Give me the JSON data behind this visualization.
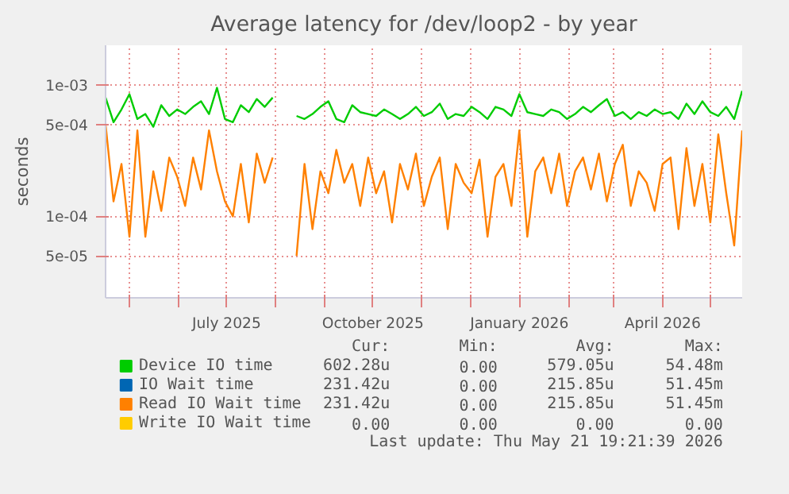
{
  "chart_data": {
    "type": "line",
    "title": "Average latency for /dev/loop2 - by year",
    "ylabel": "seconds",
    "log": "y",
    "grid": true,
    "legend": "bottom",
    "xlim": [
      "2025-04-16",
      "2026-05-21"
    ],
    "ylim": [
      2.4e-05,
      0.002
    ],
    "yticks": [
      {
        "value": 5e-05,
        "label": "5e-05"
      },
      {
        "value": 0.0001,
        "label": "1e-04"
      },
      {
        "value": 0.0005,
        "label": "5e-04"
      },
      {
        "value": 0.001,
        "label": "1e-03"
      }
    ],
    "xticks": [
      {
        "value": "2025-05-01",
        "label": null
      },
      {
        "value": "2025-06-01",
        "label": null
      },
      {
        "value": "2025-07-01",
        "label": "July 2025"
      },
      {
        "value": "2025-08-01",
        "label": null
      },
      {
        "value": "2025-09-01",
        "label": null
      },
      {
        "value": "2025-10-01",
        "label": "October 2025"
      },
      {
        "value": "2025-11-01",
        "label": null
      },
      {
        "value": "2025-12-01",
        "label": null
      },
      {
        "value": "2026-01-01",
        "label": "January 2026"
      },
      {
        "value": "2026-02-01",
        "label": null
      },
      {
        "value": "2026-03-01",
        "label": null
      },
      {
        "value": "2026-04-01",
        "label": "April 2026"
      },
      {
        "value": "2026-05-01",
        "label": null
      }
    ],
    "x": [
      "2025-04-16",
      "2025-04-21",
      "2025-04-26",
      "2025-05-01",
      "2025-05-06",
      "2025-05-11",
      "2025-05-16",
      "2025-05-21",
      "2025-05-26",
      "2025-05-31",
      "2025-06-05",
      "2025-06-10",
      "2025-06-15",
      "2025-06-20",
      "2025-06-25",
      "2025-06-30",
      "2025-07-05",
      "2025-07-10",
      "2025-07-15",
      "2025-07-20",
      "2025-07-25",
      "2025-07-30",
      "2025-08-04",
      "2025-08-09",
      "2025-08-14",
      "2025-08-19",
      "2025-08-24",
      "2025-08-29",
      "2025-09-03",
      "2025-09-08",
      "2025-09-13",
      "2025-09-18",
      "2025-09-23",
      "2025-09-28",
      "2025-10-03",
      "2025-10-08",
      "2025-10-13",
      "2025-10-18",
      "2025-10-23",
      "2025-10-28",
      "2025-11-02",
      "2025-11-07",
      "2025-11-12",
      "2025-11-17",
      "2025-11-22",
      "2025-11-27",
      "2025-12-02",
      "2025-12-07",
      "2025-12-12",
      "2025-12-17",
      "2025-12-22",
      "2025-12-27",
      "2026-01-01",
      "2026-01-06",
      "2026-01-11",
      "2026-01-16",
      "2026-01-21",
      "2026-01-26",
      "2026-01-31",
      "2026-02-05",
      "2026-02-10",
      "2026-02-15",
      "2026-02-20",
      "2026-02-25",
      "2026-03-02",
      "2026-03-07",
      "2026-03-12",
      "2026-03-17",
      "2026-03-22",
      "2026-03-27",
      "2026-04-01",
      "2026-04-06",
      "2026-04-11",
      "2026-04-16",
      "2026-04-21",
      "2026-04-26",
      "2026-05-01",
      "2026-05-06",
      "2026-05-11",
      "2026-05-16",
      "2026-05-21"
    ],
    "series": [
      {
        "name": "Device IO time",
        "color": "#00cc00",
        "values": [
          0.0008,
          0.00052,
          0.00065,
          0.00085,
          0.00055,
          0.0006,
          0.00048,
          0.0007,
          0.00058,
          0.00065,
          0.0006,
          0.00068,
          0.00075,
          0.0006,
          0.00095,
          0.00055,
          0.00052,
          0.0007,
          0.00062,
          0.00078,
          0.00068,
          0.0008,
          null,
          null,
          0.00058,
          0.00055,
          0.0006,
          0.00068,
          0.00075,
          0.00055,
          0.00052,
          0.0007,
          0.00062,
          0.0006,
          0.00058,
          0.00065,
          0.0006,
          0.00055,
          0.0006,
          0.00068,
          0.00058,
          0.00062,
          0.00072,
          0.00055,
          0.0006,
          0.00058,
          0.00068,
          0.00062,
          0.00055,
          0.00068,
          0.00065,
          0.00058,
          0.00085,
          0.00062,
          0.0006,
          0.00058,
          0.00065,
          0.00062,
          0.00055,
          0.0006,
          0.00068,
          0.00062,
          0.0007,
          0.00078,
          0.00058,
          0.00062,
          0.00055,
          0.00062,
          0.00058,
          0.00065,
          0.0006,
          0.00062,
          0.00055,
          0.00072,
          0.0006,
          0.00075,
          0.00062,
          0.00058,
          0.00068,
          0.00055,
          0.0009
        ]
      },
      {
        "name": "IO Wait time",
        "color": "#0066b3",
        "values": [
          null,
          null,
          null,
          null,
          null,
          null,
          null,
          null,
          null,
          null,
          null,
          null,
          null,
          null,
          null,
          null,
          null,
          null,
          null,
          null,
          null,
          null,
          null,
          null,
          null,
          null,
          null,
          null,
          null,
          null,
          null,
          null,
          null,
          null,
          null,
          null,
          null,
          null,
          null,
          null,
          null,
          null,
          null,
          null,
          null,
          null,
          null,
          null,
          null,
          null,
          null,
          null,
          null,
          null,
          null,
          null,
          null,
          null,
          null,
          null,
          null,
          null,
          null,
          null,
          null,
          null,
          null,
          null,
          null,
          null,
          null,
          null,
          null,
          null,
          null,
          null,
          null,
          null,
          null,
          null,
          null
        ]
      },
      {
        "name": "Read IO Wait time",
        "color": "#ff8000",
        "values": [
          0.0005,
          0.00013,
          0.00025,
          7e-05,
          0.00045,
          7e-05,
          0.00022,
          0.00011,
          0.00028,
          0.0002,
          0.00012,
          0.00028,
          0.00016,
          0.00045,
          0.00022,
          0.00013,
          0.0001,
          0.00025,
          9e-05,
          0.0003,
          0.00018,
          0.00028,
          null,
          null,
          5e-05,
          0.00025,
          8e-05,
          0.00022,
          0.00015,
          0.00032,
          0.00018,
          0.00025,
          0.00012,
          0.00028,
          0.00015,
          0.00022,
          9e-05,
          0.00025,
          0.00016,
          0.0003,
          0.00012,
          0.0002,
          0.00028,
          8e-05,
          0.00025,
          0.00018,
          0.00015,
          0.00027,
          7e-05,
          0.0002,
          0.00025,
          0.00012,
          0.00045,
          7e-05,
          0.00022,
          0.00028,
          0.00015,
          0.0003,
          0.00012,
          0.00022,
          0.00028,
          0.00016,
          0.0003,
          0.00013,
          0.00025,
          0.00035,
          0.00012,
          0.00022,
          0.00018,
          0.00011,
          0.00025,
          0.00028,
          8e-05,
          0.00033,
          0.00012,
          0.00025,
          9e-05,
          0.00042,
          0.00015,
          6e-05,
          0.00045
        ]
      },
      {
        "name": "Write IO Wait time",
        "color": "#ffcc00",
        "values": [
          null,
          null,
          null,
          null,
          null,
          null,
          null,
          null,
          null,
          null,
          null,
          null,
          null,
          null,
          null,
          null,
          null,
          null,
          null,
          null,
          null,
          null,
          null,
          null,
          null,
          null,
          null,
          null,
          null,
          null,
          null,
          null,
          null,
          null,
          null,
          null,
          null,
          null,
          null,
          null,
          null,
          null,
          null,
          null,
          null,
          null,
          null,
          null,
          null,
          null,
          null,
          null,
          null,
          null,
          null,
          null,
          null,
          null,
          null,
          null,
          null,
          null,
          null,
          null,
          null,
          null,
          null,
          null,
          null,
          null,
          null,
          null,
          null,
          null,
          null,
          null,
          null,
          null,
          null,
          null,
          null
        ]
      }
    ],
    "annotations": [
      "Cur:",
      "Min:",
      "Avg:",
      "Max:",
      "602.28u",
      "0.00",
      "579.05u",
      "54.48m",
      "231.42u",
      "0.00",
      "215.85u",
      "51.45m",
      "231.42u",
      "0.00",
      "215.85u",
      "51.45m",
      "0.00",
      "0.00",
      "0.00",
      "0.00",
      "Last update: Thu May 21 19:21:39 2026"
    ]
  }
}
